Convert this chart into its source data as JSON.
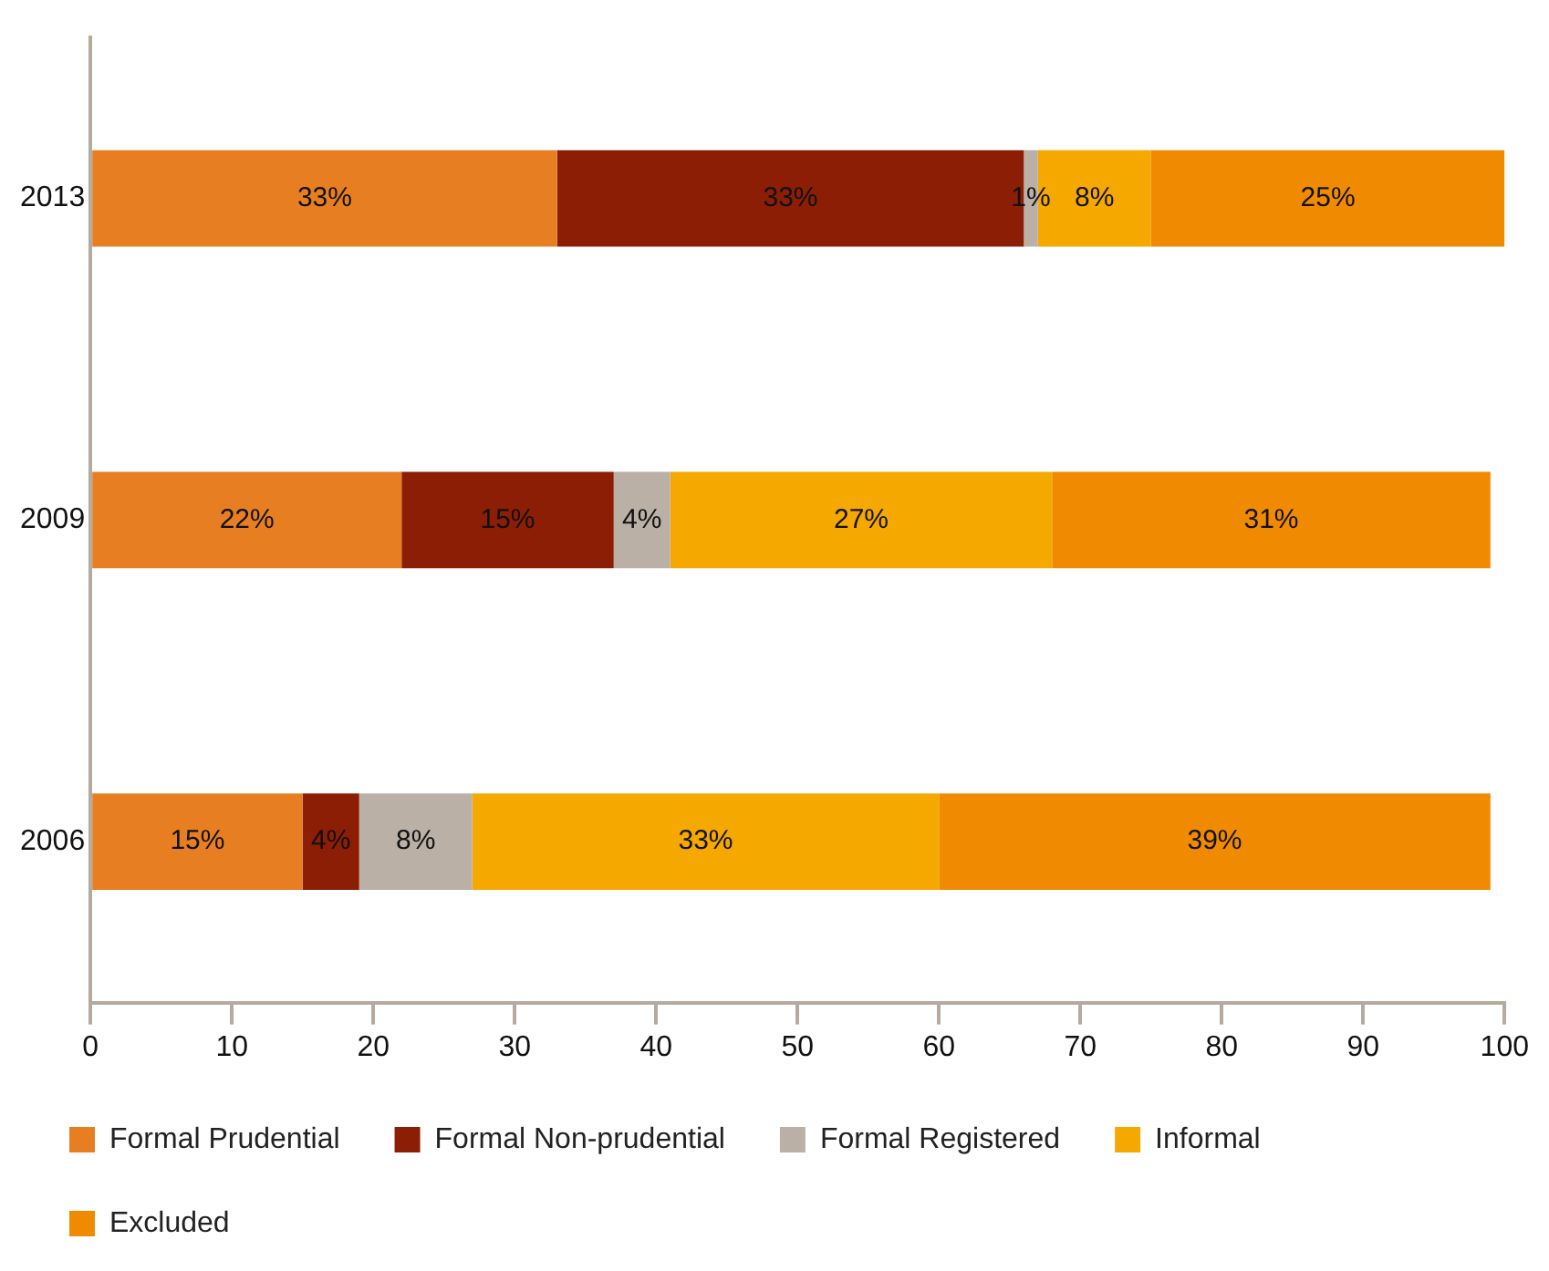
{
  "chart_data": {
    "type": "bar",
    "orientation": "horizontal",
    "stacked": true,
    "categories": [
      "2013",
      "2009",
      "2006"
    ],
    "series": [
      {
        "name": "Formal Prudential",
        "color": "#e77f22",
        "values": [
          33,
          22,
          15
        ],
        "value_labels": [
          "33%",
          "22%",
          "15%"
        ]
      },
      {
        "name": "Formal Non-prudential",
        "color": "#8b1e04",
        "values": [
          33,
          15,
          4
        ],
        "value_labels": [
          "33%",
          "15%",
          "4%"
        ]
      },
      {
        "name": "Formal Registered",
        "color": "#bab0a6",
        "values": [
          1,
          4,
          8
        ],
        "value_labels": [
          "1%",
          "4%",
          "8%"
        ]
      },
      {
        "name": "Informal",
        "color": "#f5a800",
        "values": [
          8,
          27,
          33
        ],
        "value_labels": [
          "8%",
          "27%",
          "33%"
        ]
      },
      {
        "name": "Excluded",
        "color": "#f08a00",
        "values": [
          25,
          31,
          39
        ],
        "value_labels": [
          "25%",
          "31%",
          "39%"
        ]
      }
    ],
    "xlim": [
      0,
      100
    ],
    "xticks": [
      0,
      10,
      20,
      30,
      40,
      50,
      60,
      70,
      80,
      90,
      100
    ],
    "grid": false,
    "legend": "bottom"
  }
}
